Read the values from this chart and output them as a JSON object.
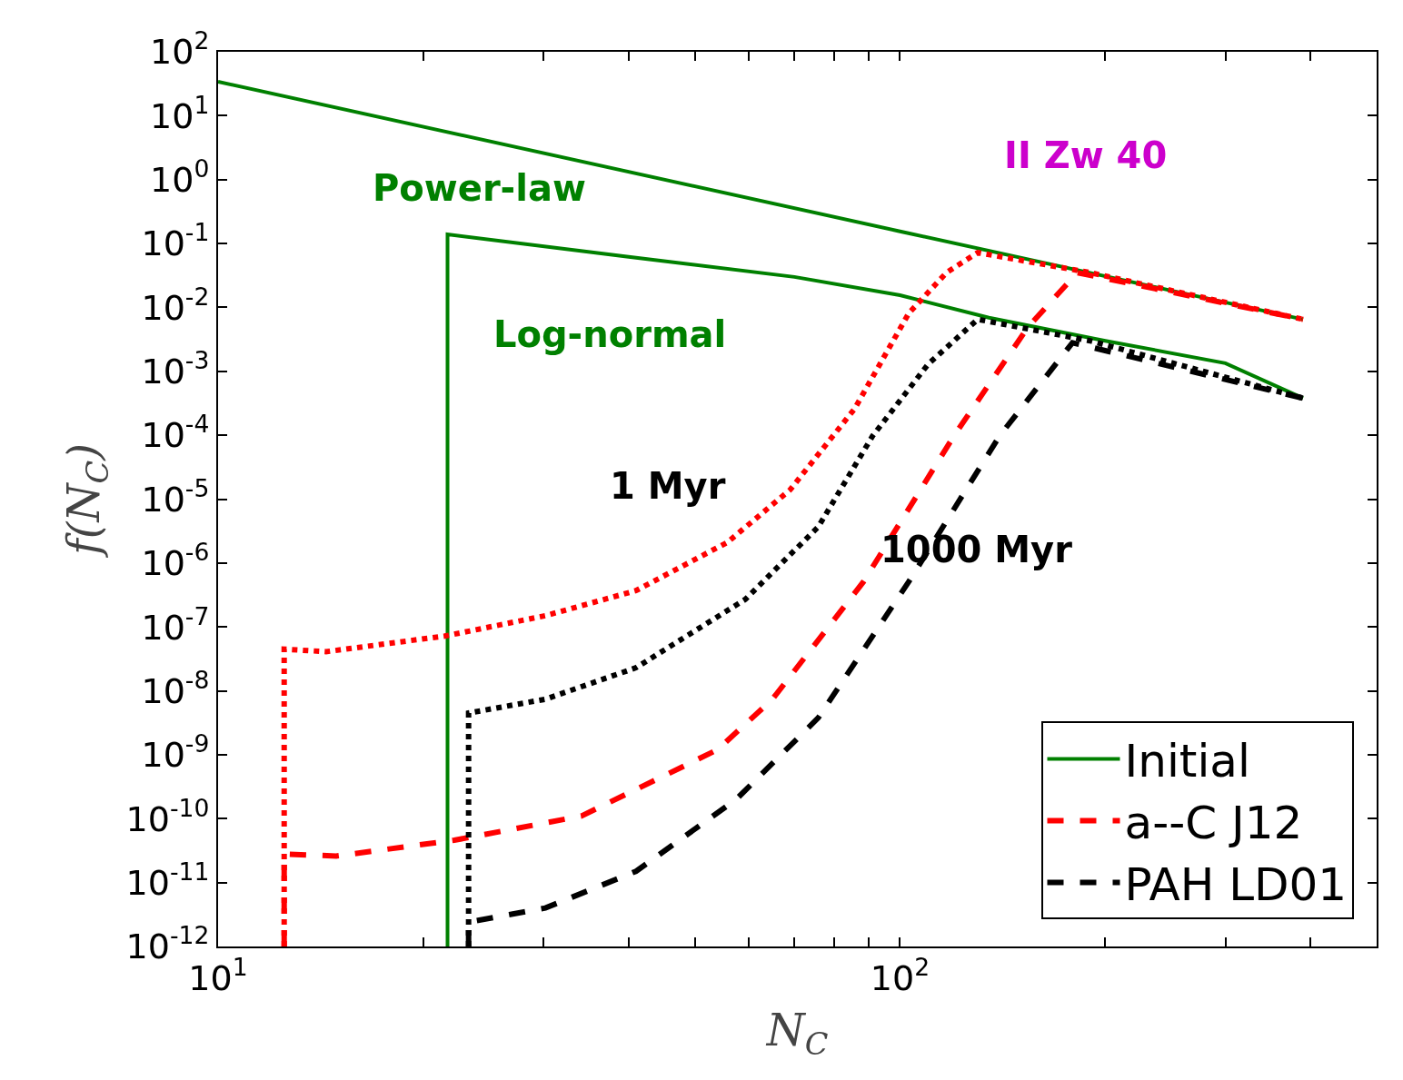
{
  "chart_data": {
    "type": "line",
    "xlabel": "N$_{C}$",
    "ylabel": "f(N$_{C}$)",
    "log": "xy",
    "xlim": [
      10,
      500
    ],
    "ylim": [
      1e-12,
      100
    ],
    "xticks": [
      {
        "value": 10,
        "label": "10$^{1}$"
      },
      {
        "value": 20,
        "label": null
      },
      {
        "value": 30,
        "label": null
      },
      {
        "value": 40,
        "label": null
      },
      {
        "value": 50,
        "label": null
      },
      {
        "value": 60,
        "label": null
      },
      {
        "value": 70,
        "label": null
      },
      {
        "value": 80,
        "label": null
      },
      {
        "value": 90,
        "label": null
      },
      {
        "value": 100,
        "label": "10$^{2}$"
      },
      {
        "value": 200,
        "label": null
      },
      {
        "value": 300,
        "label": null
      },
      {
        "value": 400,
        "label": null
      },
      {
        "value": 500,
        "label": null
      }
    ],
    "yticks": [
      {
        "value": 1e-12,
        "label": "10$^{-12}$"
      },
      {
        "value": 1e-11,
        "label": "10$^{-11}$"
      },
      {
        "value": 1e-10,
        "label": "10$^{-10}$"
      },
      {
        "value": 1e-09,
        "label": "10$^{-9}$"
      },
      {
        "value": 1e-08,
        "label": "10$^{-8}$"
      },
      {
        "value": 1e-07,
        "label": "10$^{-7}$"
      },
      {
        "value": 1e-06,
        "label": "10$^{-6}$"
      },
      {
        "value": 1e-05,
        "label": "10$^{-5}$"
      },
      {
        "value": 0.0001,
        "label": "10$^{-4}$"
      },
      {
        "value": 0.001,
        "label": "10$^{-3}$"
      },
      {
        "value": 0.01,
        "label": "10$^{-2}$"
      },
      {
        "value": 0.1,
        "label": "10$^{-1}$"
      },
      {
        "value": 1,
        "label": "10$^{0}$"
      },
      {
        "value": 10,
        "label": "10$^{1}$"
      },
      {
        "value": 100,
        "label": "10$^{2}$"
      }
    ],
    "grid": false,
    "legend": "bottom right",
    "series": [
      {
        "name": "Initial",
        "color": "#008000",
        "line_style": "solid",
        "x": [
          10,
          100,
          390
        ],
        "values": [
          34,
          0.155,
          0.0065
        ]
      },
      {
        "color": "#008000",
        "line_style": "solid",
        "x": [
          21.7,
          21.7,
          40,
          70,
          100,
          135,
          200,
          300,
          390
        ],
        "values": [
          1e-12,
          0.139,
          0.062,
          0.03,
          0.0155,
          0.0069,
          0.003,
          0.00134,
          0.00038
        ]
      },
      {
        "name": "a--C J12",
        "color": "#ff0000",
        "line_style": "dashed",
        "x": [
          12.5,
          12.5,
          14.9,
          22.2,
          34.1,
          54,
          65,
          88.4,
          120,
          154,
          182,
          390
        ],
        "values": [
          1e-12,
          2.8e-11,
          2.6e-11,
          4.6e-11,
          1.1e-10,
          1.2e-09,
          7.4e-09,
          5.1e-07,
          9.8e-05,
          0.0049,
          0.035,
          0.0065
        ]
      },
      {
        "color": "#ff0000",
        "line_style": "dotted",
        "x": [
          12.5,
          12.5,
          14.4,
          21.5,
          30.2,
          41,
          55.8,
          69,
          85.8,
          103,
          117,
          130,
          190,
          390
        ],
        "values": [
          1e-12,
          4.5e-08,
          4.1e-08,
          7.2e-08,
          1.5e-07,
          3.7e-07,
          2.1e-06,
          1.4e-05,
          0.00026,
          0.0081,
          0.035,
          0.072,
          0.035,
          0.0065
        ]
      },
      {
        "name": "PAH LD01",
        "color": "#000000",
        "line_style": "dashed",
        "x": [
          23.3,
          23.3,
          30.2,
          41,
          57.5,
          75.9,
          103,
          140,
          179,
          390
        ],
        "values": [
          1e-12,
          2.4e-12,
          4e-12,
          1.5e-11,
          2e-10,
          3.8e-09,
          5.1e-07,
          9.8e-05,
          0.0028,
          0.00038
        ]
      },
      {
        "color": "#000000",
        "line_style": "dotted",
        "x": [
          23.3,
          23.3,
          30.2,
          41,
          59.3,
          75.9,
          91.2,
          110,
          130,
          190,
          390
        ],
        "values": [
          1e-12,
          4.5e-09,
          7.4e-09,
          2.3e-08,
          2.7e-07,
          3.7e-06,
          9.8e-05,
          0.0013,
          0.0065,
          0.003,
          0.00038
        ]
      }
    ],
    "annotations": [
      "Power-law",
      "Log-normal",
      "II Zw 40",
      "1 Myr",
      "1000 Myr"
    ]
  }
}
